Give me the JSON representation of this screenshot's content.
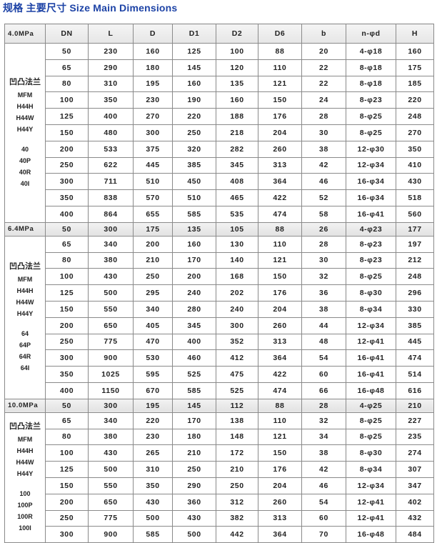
{
  "title": "规格 主要尺寸 Size Main Dimensions",
  "colors": {
    "title": "#1d43a6",
    "header_bg": "#ebebeb",
    "border": "#8a8a8a"
  },
  "columns": [
    "DN",
    "L",
    "D",
    "D1",
    "D2",
    "D6",
    "b",
    "n-φd",
    "H"
  ],
  "sections": [
    {
      "pressure": "4.0MPa",
      "label_cn": "凹凸法兰",
      "models": [
        "MFM",
        "H44H",
        "H44W",
        "H44Y"
      ],
      "codes": [
        "40",
        "40P",
        "40R",
        "40I"
      ],
      "rows": [
        [
          "50",
          "230",
          "160",
          "125",
          "100",
          "88",
          "20",
          "4-φ18",
          "160"
        ],
        [
          "65",
          "290",
          "180",
          "145",
          "120",
          "110",
          "22",
          "8-φ18",
          "175"
        ],
        [
          "80",
          "310",
          "195",
          "160",
          "135",
          "121",
          "22",
          "8-φ18",
          "185"
        ],
        [
          "100",
          "350",
          "230",
          "190",
          "160",
          "150",
          "24",
          "8-φ23",
          "220"
        ],
        [
          "125",
          "400",
          "270",
          "220",
          "188",
          "176",
          "28",
          "8-φ25",
          "248"
        ],
        [
          "150",
          "480",
          "300",
          "250",
          "218",
          "204",
          "30",
          "8-φ25",
          "270"
        ],
        [
          "200",
          "533",
          "375",
          "320",
          "282",
          "260",
          "38",
          "12-φ30",
          "350"
        ],
        [
          "250",
          "622",
          "445",
          "385",
          "345",
          "313",
          "42",
          "12-φ34",
          "410"
        ],
        [
          "300",
          "711",
          "510",
          "450",
          "408",
          "364",
          "46",
          "16-φ34",
          "430"
        ],
        [
          "350",
          "838",
          "570",
          "510",
          "465",
          "422",
          "52",
          "16-φ34",
          "518"
        ],
        [
          "400",
          "864",
          "655",
          "585",
          "535",
          "474",
          "58",
          "16-φ41",
          "560"
        ]
      ]
    },
    {
      "pressure": "6.4MPa",
      "label_cn": "凹凸法兰",
      "models": [
        "MFM",
        "H44H",
        "H44W",
        "H44Y"
      ],
      "codes": [
        "64",
        "64P",
        "64R",
        "64I"
      ],
      "rows": [
        [
          "50",
          "300",
          "175",
          "135",
          "105",
          "88",
          "26",
          "4-φ23",
          "177"
        ],
        [
          "65",
          "340",
          "200",
          "160",
          "130",
          "110",
          "28",
          "8-φ23",
          "197"
        ],
        [
          "80",
          "380",
          "210",
          "170",
          "140",
          "121",
          "30",
          "8-φ23",
          "212"
        ],
        [
          "100",
          "430",
          "250",
          "200",
          "168",
          "150",
          "32",
          "8-φ25",
          "248"
        ],
        [
          "125",
          "500",
          "295",
          "240",
          "202",
          "176",
          "36",
          "8-φ30",
          "296"
        ],
        [
          "150",
          "550",
          "340",
          "280",
          "240",
          "204",
          "38",
          "8-φ34",
          "330"
        ],
        [
          "200",
          "650",
          "405",
          "345",
          "300",
          "260",
          "44",
          "12-φ34",
          "385"
        ],
        [
          "250",
          "775",
          "470",
          "400",
          "352",
          "313",
          "48",
          "12-φ41",
          "445"
        ],
        [
          "300",
          "900",
          "530",
          "460",
          "412",
          "364",
          "54",
          "16-φ41",
          "474"
        ],
        [
          "350",
          "1025",
          "595",
          "525",
          "475",
          "422",
          "60",
          "16-φ41",
          "514"
        ],
        [
          "400",
          "1150",
          "670",
          "585",
          "525",
          "474",
          "66",
          "16-φ48",
          "616"
        ]
      ]
    },
    {
      "pressure": "10.0MPa",
      "label_cn": "凹凸法兰",
      "models": [
        "MFM",
        "H44H",
        "H44W",
        "H44Y"
      ],
      "codes": [
        "100",
        "100P",
        "100R",
        "100I"
      ],
      "rows": [
        [
          "50",
          "300",
          "195",
          "145",
          "112",
          "88",
          "28",
          "4-φ25",
          "210"
        ],
        [
          "65",
          "340",
          "220",
          "170",
          "138",
          "110",
          "32",
          "8-φ25",
          "227"
        ],
        [
          "80",
          "380",
          "230",
          "180",
          "148",
          "121",
          "34",
          "8-φ25",
          "235"
        ],
        [
          "100",
          "430",
          "265",
          "210",
          "172",
          "150",
          "38",
          "8-φ30",
          "274"
        ],
        [
          "125",
          "500",
          "310",
          "250",
          "210",
          "176",
          "42",
          "8-φ34",
          "307"
        ],
        [
          "150",
          "550",
          "350",
          "290",
          "250",
          "204",
          "46",
          "12-φ34",
          "347"
        ],
        [
          "200",
          "650",
          "430",
          "360",
          "312",
          "260",
          "54",
          "12-φ41",
          "402"
        ],
        [
          "250",
          "775",
          "500",
          "430",
          "382",
          "313",
          "60",
          "12-φ41",
          "432"
        ],
        [
          "300",
          "900",
          "585",
          "500",
          "442",
          "364",
          "70",
          "16-φ48",
          "484"
        ]
      ]
    }
  ]
}
